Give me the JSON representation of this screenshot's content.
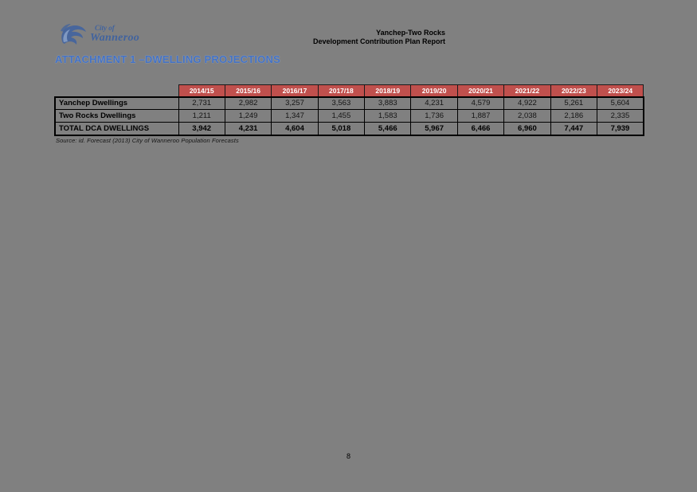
{
  "colors": {
    "canvas_background": "#808080",
    "table_header_red": "#C0504D",
    "title_blue": "#4472C4",
    "logo_blue": "#41639E"
  },
  "logo": {
    "top_text": "City of",
    "bottom_text": "Wanneroo"
  },
  "document_header": {
    "line1": "Yanchep-Two Rocks",
    "line2": "Development Contribution Plan Report"
  },
  "title": "ATTACHMENT 1 –DWELLING PROJECTIONS",
  "table": {
    "year_columns": [
      "2014/15",
      "2015/16",
      "2016/17",
      "2017/18",
      "2018/19",
      "2019/20",
      "2020/21",
      "2021/22",
      "2022/23",
      "2023/24"
    ],
    "rows": [
      {
        "label": "Yanchep Dwellings",
        "bold": false,
        "values": [
          "2,731",
          "2,982",
          "3,257",
          "3,563",
          "3,883",
          "4,231",
          "4,579",
          "4,922",
          "5,261",
          "5,604"
        ]
      },
      {
        "label": "Two Rocks Dwellings",
        "bold": false,
        "values": [
          "1,211",
          "1,249",
          "1,347",
          "1,455",
          "1,583",
          "1,736",
          "1,887",
          "2,038",
          "2,186",
          "2,335"
        ]
      },
      {
        "label": "TOTAL DCA DWELLINGS",
        "bold": true,
        "values": [
          "3,942",
          "4,231",
          "4,604",
          "5,018",
          "5,466",
          "5,967",
          "6,466",
          "6,960",
          "7,447",
          "7,939"
        ]
      }
    ],
    "source_note": "Source: id. Forecast (2013) City of Wanneroo Population Forecasts"
  },
  "footer": {
    "page_number": "8"
  }
}
